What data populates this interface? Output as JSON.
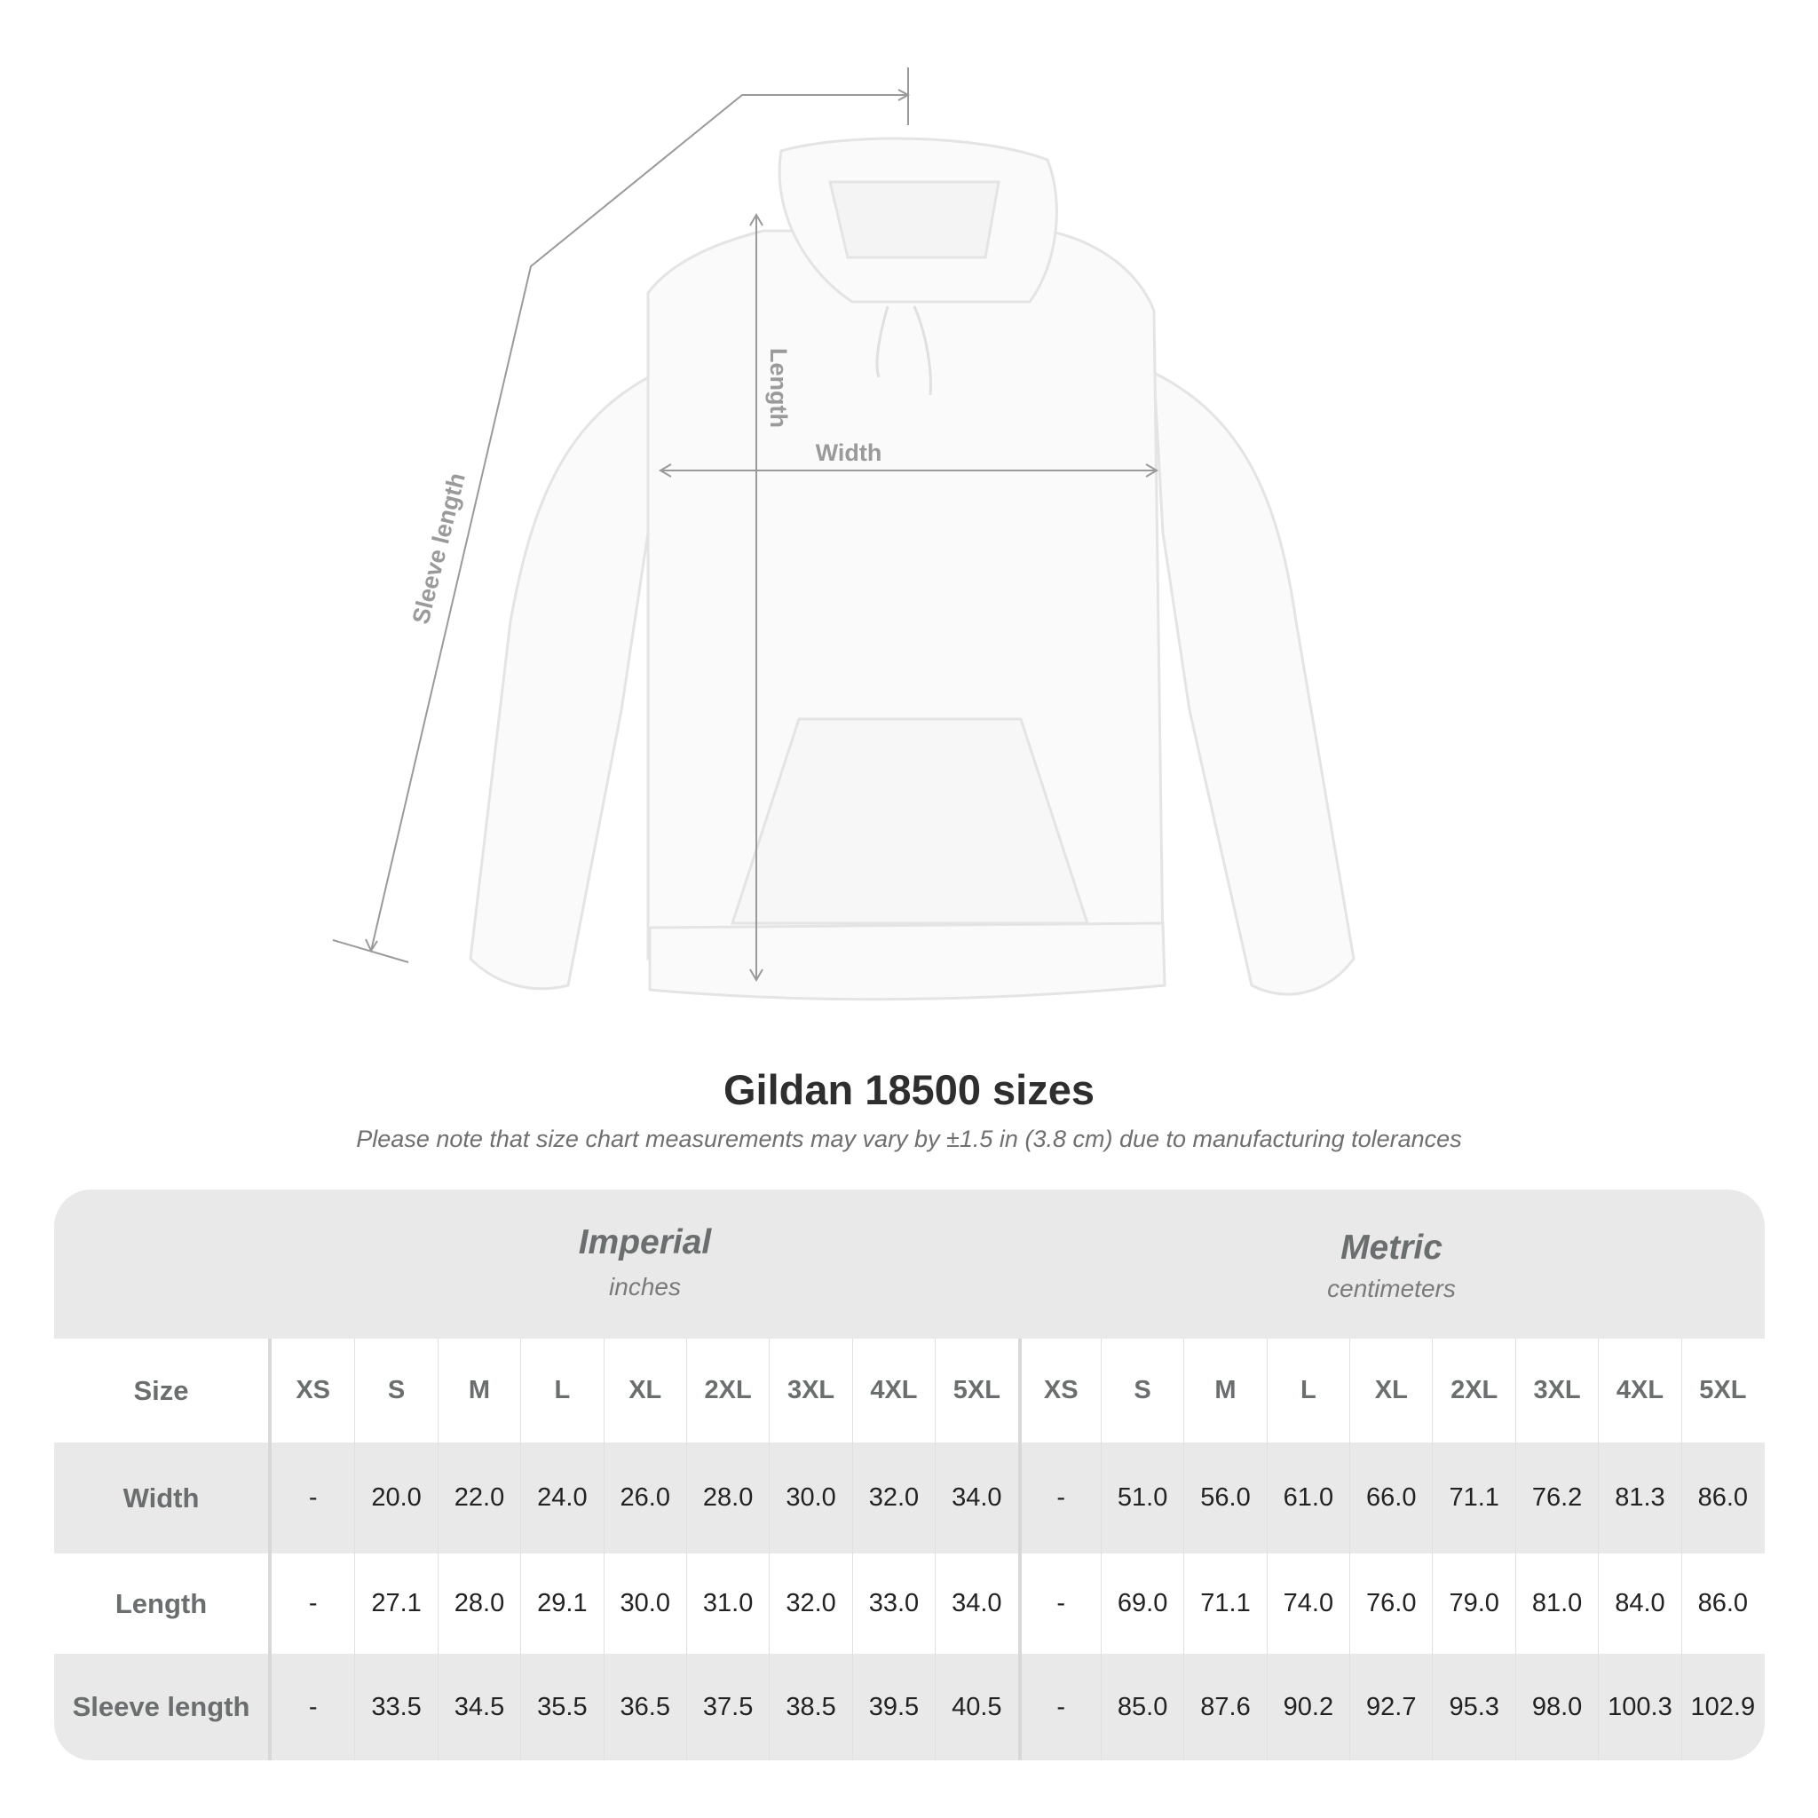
{
  "diagram": {
    "sleeve_label": "Sleeve length",
    "length_label": "Length",
    "width_label": "Width"
  },
  "title": "Gildan 18500 sizes",
  "note": "Please note that size chart measurements may vary by ±1.5 in (3.8 cm) due to manufacturing tolerances",
  "table": {
    "imperial": {
      "title": "Imperial",
      "unit": "inches"
    },
    "metric": {
      "title": "Metric",
      "unit": "centimeters"
    },
    "rows": [
      {
        "label": "Size",
        "imperial": [
          "XS",
          "S",
          "M",
          "L",
          "XL",
          "2XL",
          "3XL",
          "4XL",
          "5XL"
        ],
        "metric": [
          "XS",
          "S",
          "M",
          "L",
          "XL",
          "2XL",
          "3XL",
          "4XL",
          "5XL"
        ]
      },
      {
        "label": "Width",
        "imperial": [
          "-",
          "20.0",
          "22.0",
          "24.0",
          "26.0",
          "28.0",
          "30.0",
          "32.0",
          "34.0"
        ],
        "metric": [
          "-",
          "51.0",
          "56.0",
          "61.0",
          "66.0",
          "71.1",
          "76.2",
          "81.3",
          "86.0"
        ]
      },
      {
        "label": "Length",
        "imperial": [
          "-",
          "27.1",
          "28.0",
          "29.1",
          "30.0",
          "31.0",
          "32.0",
          "33.0",
          "34.0"
        ],
        "metric": [
          "-",
          "69.0",
          "71.1",
          "74.0",
          "76.0",
          "79.0",
          "81.0",
          "84.0",
          "86.0"
        ]
      },
      {
        "label": "Sleeve length",
        "imperial": [
          "-",
          "33.5",
          "34.5",
          "35.5",
          "36.5",
          "37.5",
          "38.5",
          "39.5",
          "40.5"
        ],
        "metric": [
          "-",
          "85.0",
          "87.6",
          "90.2",
          "92.7",
          "95.3",
          "98.0",
          "100.3",
          "102.9"
        ]
      }
    ]
  }
}
